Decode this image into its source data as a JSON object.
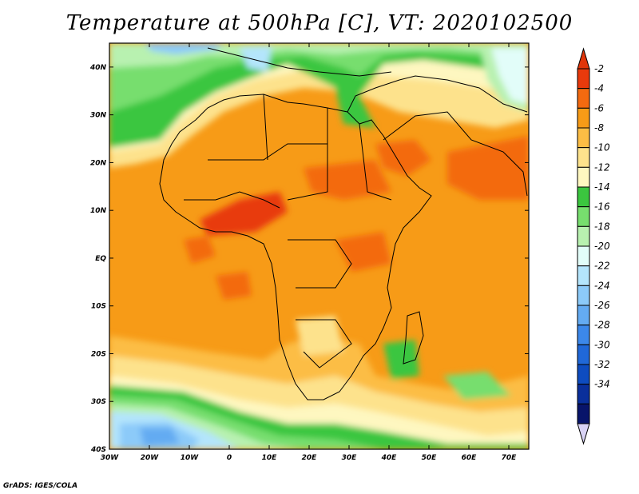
{
  "title": "Temperature at 500hPa [C], VT: 2020102500",
  "credit": "GrADS: IGES/COLA",
  "map": {
    "lon_range": [
      -30,
      75
    ],
    "lat_range": [
      -40,
      45
    ],
    "lat_labels": [
      {
        "lat": 40,
        "label": "40N"
      },
      {
        "lat": 30,
        "label": "30N"
      },
      {
        "lat": 20,
        "label": "20N"
      },
      {
        "lat": 10,
        "label": "10N"
      },
      {
        "lat": 0,
        "label": "EQ"
      },
      {
        "lat": -10,
        "label": "10S"
      },
      {
        "lat": -20,
        "label": "20S"
      },
      {
        "lat": -30,
        "label": "30S"
      },
      {
        "lat": -40,
        "label": "40S"
      }
    ],
    "lon_labels": [
      {
        "lon": -30,
        "label": "30W"
      },
      {
        "lon": -20,
        "label": "20W"
      },
      {
        "lon": -10,
        "label": "10W"
      },
      {
        "lon": 0,
        "label": "0"
      },
      {
        "lon": 10,
        "label": "10E"
      },
      {
        "lon": 20,
        "label": "20E"
      },
      {
        "lon": 30,
        "label": "30E"
      },
      {
        "lon": 40,
        "label": "40E"
      },
      {
        "lon": 50,
        "label": "50E"
      },
      {
        "lon": 60,
        "label": "60E"
      },
      {
        "lon": 70,
        "label": "70E"
      }
    ]
  },
  "colorbar": {
    "colors": [
      "#e83a0c",
      "#f36a10",
      "#f79b17",
      "#fcbd45",
      "#fde28c",
      "#fef7c0",
      "#3bc63f",
      "#77de6e",
      "#b8f1b0",
      "#e2fdf9",
      "#b4e5fc",
      "#8ccaf9",
      "#64abf2",
      "#3c88ea",
      "#2068d8",
      "#0e4cc0",
      "#0a2f9b",
      "#08146a"
    ],
    "labels": [
      "-2",
      "-4",
      "-6",
      "-8",
      "-10",
      "-12",
      "-14",
      "-16",
      "-18",
      "-20",
      "-22",
      "-24",
      "-26",
      "-28",
      "-30",
      "-32",
      "-34"
    ],
    "top_arrow_color": "#e0350a",
    "bottom_arrow_color": "#d9d3f5"
  }
}
